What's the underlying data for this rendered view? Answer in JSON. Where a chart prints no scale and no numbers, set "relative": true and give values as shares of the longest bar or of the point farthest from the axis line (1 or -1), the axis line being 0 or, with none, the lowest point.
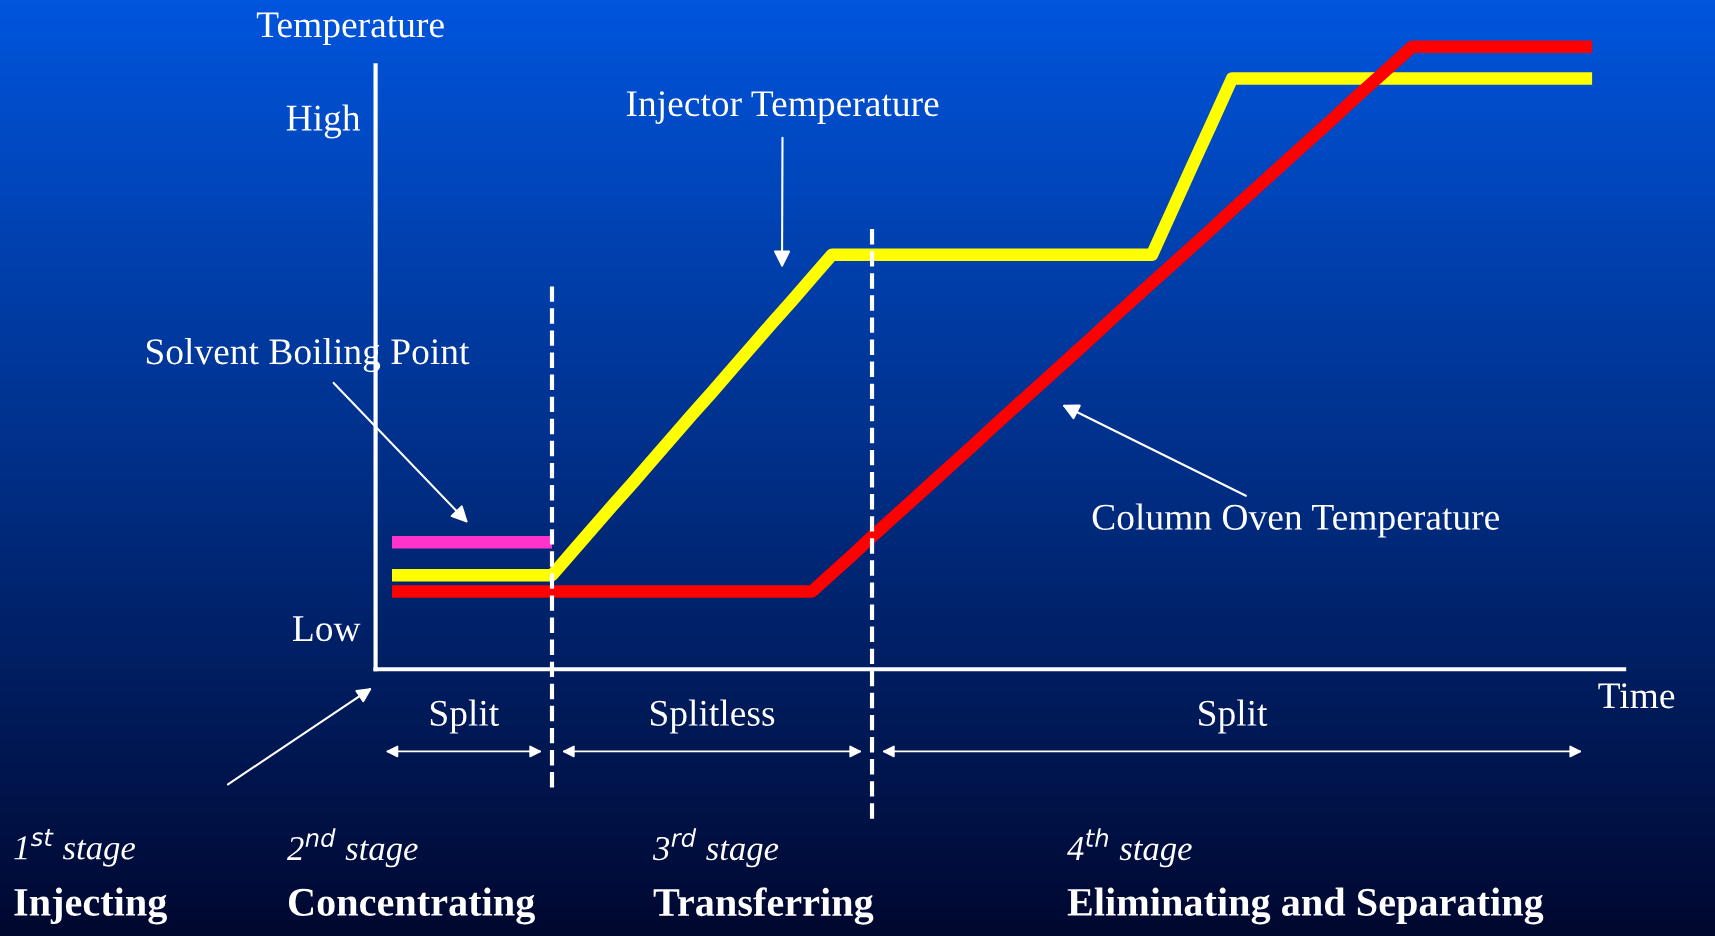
{
  "chart_data": {
    "type": "line",
    "relative": true,
    "ylabel": "Temperature",
    "xlabel": "Time",
    "categories": [
      null,
      null,
      null,
      null,
      null,
      null,
      null,
      null,
      null,
      null,
      null,
      null,
      null,
      null,
      null,
      null,
      null,
      null,
      null,
      null,
      null,
      null,
      null,
      null,
      null,
      null,
      null,
      null,
      null,
      null,
      null,
      null,
      null,
      null,
      null,
      null,
      null,
      null,
      null,
      null,
      null,
      null,
      null,
      null,
      null,
      null,
      null,
      null,
      null,
      null,
      null,
      null,
      null,
      null,
      null,
      null,
      null,
      null,
      null,
      null,
      null
    ],
    "grid": false,
    "legend": false,
    "marker": "none",
    "line_style": "solid",
    "series": [
      {
        "color": "#ff33cc",
        "values": [
          0.204,
          0.204,
          0.204,
          0.204,
          0.204,
          0.204,
          0.204,
          0.204,
          0.204,
          null,
          null,
          null,
          null,
          null,
          null,
          null,
          null,
          null,
          null,
          null,
          null,
          null,
          null,
          null,
          null,
          null,
          null,
          null,
          null,
          null,
          null,
          null,
          null,
          null,
          null,
          null,
          null,
          null,
          null,
          null,
          null,
          null,
          null,
          null,
          null,
          null,
          null,
          null,
          null,
          null,
          null,
          null,
          null,
          null,
          null,
          null,
          null,
          null,
          null,
          null,
          null
        ]
      },
      {
        "color": "#ffff00",
        "values": [
          0.151,
          0.151,
          0.151,
          0.151,
          0.151,
          0.151,
          0.151,
          0.151,
          0.151,
          0.188,
          0.225,
          0.262,
          0.298,
          0.335,
          0.372,
          0.409,
          0.445,
          0.482,
          0.519,
          0.556,
          0.592,
          0.629,
          0.666,
          0.666,
          0.666,
          0.666,
          0.666,
          0.666,
          0.666,
          0.666,
          0.666,
          0.666,
          0.666,
          0.666,
          0.666,
          0.666,
          0.666,
          0.666,
          0.666,
          0.737,
          0.808,
          0.878,
          0.949,
          0.949,
          0.949,
          0.949,
          0.949,
          0.949,
          0.949,
          0.949,
          0.949,
          0.949,
          0.949,
          0.949,
          0.949,
          0.949,
          0.949,
          0.949,
          0.949,
          0.949,
          0.949
        ]
      },
      {
        "color": "#ff0000",
        "values": [
          0.125,
          0.125,
          0.125,
          0.125,
          0.125,
          0.125,
          0.125,
          0.125,
          0.125,
          0.125,
          0.125,
          0.125,
          0.125,
          0.125,
          0.125,
          0.125,
          0.125,
          0.125,
          0.125,
          0.125,
          0.125,
          0.125,
          0.154,
          0.183,
          0.213,
          0.242,
          0.271,
          0.3,
          0.329,
          0.358,
          0.388,
          0.417,
          0.446,
          0.475,
          0.504,
          0.533,
          0.563,
          0.592,
          0.621,
          0.65,
          0.679,
          0.708,
          0.738,
          0.767,
          0.796,
          0.825,
          0.854,
          0.883,
          0.913,
          0.942,
          0.971,
          1.0,
          1.0,
          1.0,
          1.0,
          1.0,
          1.0,
          1.0,
          1.0,
          1.0,
          1.0
        ]
      }
    ],
    "annotations": [
      "Injector Temperature",
      "Column Oven Temperature",
      "Solvent Boiling Point",
      "Split",
      "Splitless",
      "Split",
      "1$^{st}$ stage",
      "Injecting",
      "2$^{nd}$ stage",
      "Concentrating",
      "3$^{rd}$ stage",
      "Transferring",
      "4$^{th}$ stage",
      "Eliminating and Separating",
      "High",
      "Low"
    ]
  }
}
